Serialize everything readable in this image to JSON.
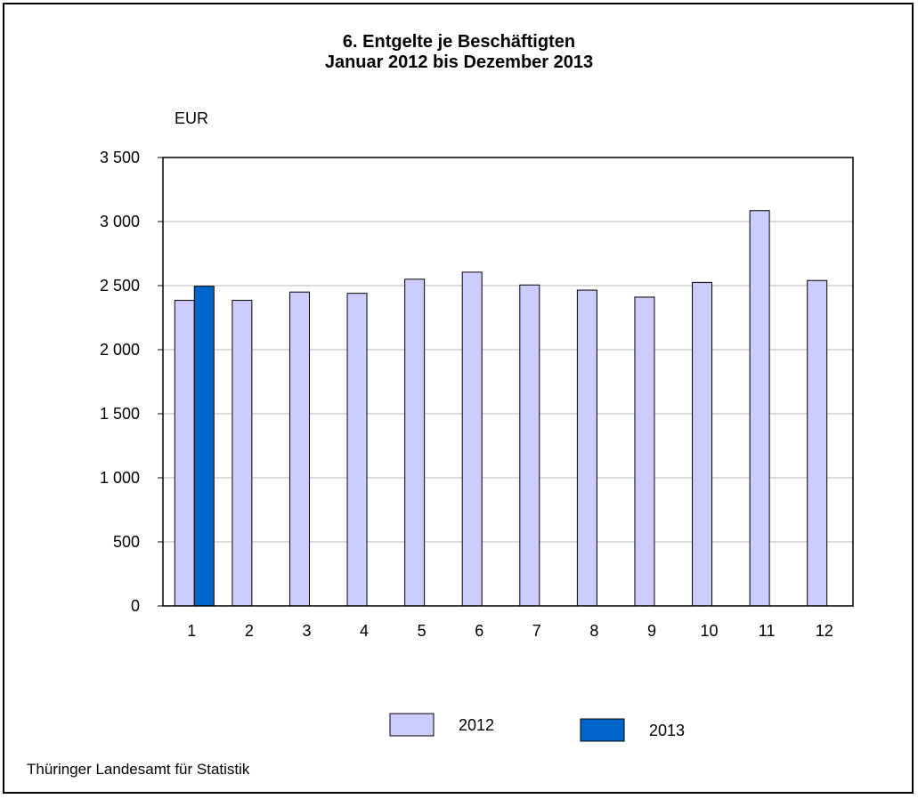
{
  "chart_data": {
    "type": "bar",
    "title_line1": "6. Entgelte je Beschäftigten",
    "title_line2": "Januar 2012 bis Dezember 2013",
    "ylabel": "EUR",
    "categories": [
      "1",
      "2",
      "3",
      "4",
      "5",
      "6",
      "7",
      "8",
      "9",
      "10",
      "11",
      "12"
    ],
    "series": [
      {
        "name": "2012",
        "color": "#ccccff",
        "values": [
          2385,
          2385,
          2450,
          2440,
          2550,
          2605,
          2505,
          2465,
          2410,
          2525,
          3085,
          2540
        ]
      },
      {
        "name": "2013",
        "color": "#0066cc",
        "values": [
          2495,
          null,
          null,
          null,
          null,
          null,
          null,
          null,
          null,
          null,
          null,
          null
        ]
      }
    ],
    "ylim": [
      0,
      3500
    ],
    "yticks": [
      0,
      500,
      1000,
      1500,
      2000,
      2500,
      3000,
      3500
    ],
    "ytick_labels": [
      "0",
      "500",
      "1 000",
      "1 500",
      "2 000",
      "2 500",
      "3 000",
      "3 500"
    ],
    "grid": true,
    "legend": "bottom"
  },
  "source": "Thüringer Landesamt für Statistik"
}
